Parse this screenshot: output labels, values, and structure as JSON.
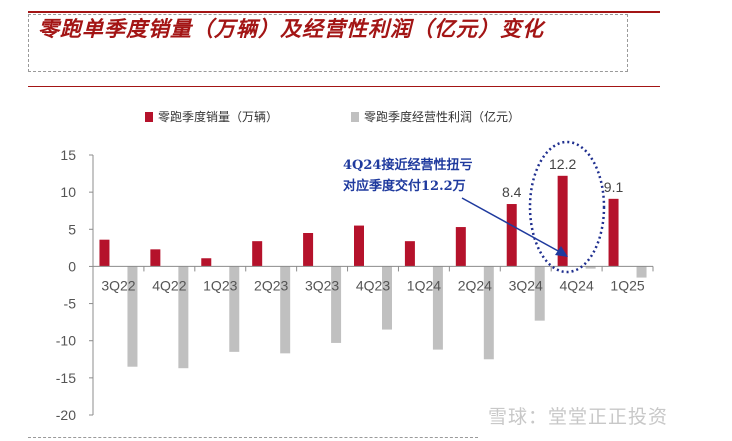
{
  "header": {
    "title": "零跑单季度销量（万辆）及经营性利润（亿元）变化"
  },
  "chart_data": {
    "type": "bar",
    "categories": [
      "3Q22",
      "4Q22",
      "1Q23",
      "2Q23",
      "3Q23",
      "4Q23",
      "1Q24",
      "2Q24",
      "3Q24",
      "4Q24",
      "1Q25"
    ],
    "series": [
      {
        "name": "零跑季度销量（万辆）",
        "values": [
          3.6,
          2.3,
          1.1,
          3.4,
          4.5,
          5.5,
          3.4,
          5.3,
          8.4,
          12.2,
          9.1
        ]
      },
      {
        "name": "零跑季度经营性利润（亿元）",
        "values": [
          -13.5,
          -13.7,
          -11.5,
          -11.7,
          -10.3,
          -8.5,
          -11.2,
          -12.5,
          -7.3,
          -0.3,
          -1.5
        ]
      }
    ],
    "data_labels": [
      {
        "category": "3Q24",
        "text": "8.4"
      },
      {
        "category": "4Q24",
        "text": "12.2"
      },
      {
        "category": "1Q25",
        "text": "9.1"
      }
    ],
    "yticks": [
      15,
      10,
      5,
      0,
      -5,
      -10,
      -15,
      -20
    ],
    "ylim": [
      -20,
      15
    ],
    "legend_position": "top",
    "colors": {
      "sales": "#b5122b",
      "profit": "#c0c0c0",
      "annotation": "#1f3a9e",
      "title": "#a31515"
    },
    "annotation": {
      "text_line1": "4Q24接近经营性扭亏",
      "text_line2": "对应季度交付12.2万",
      "target_category": "4Q24"
    }
  },
  "watermark": "雪球：堂堂正正投资"
}
